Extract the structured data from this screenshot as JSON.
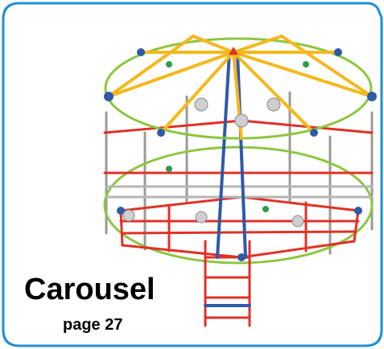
{
  "title": "Carousel",
  "page_label": "page 27"
}
